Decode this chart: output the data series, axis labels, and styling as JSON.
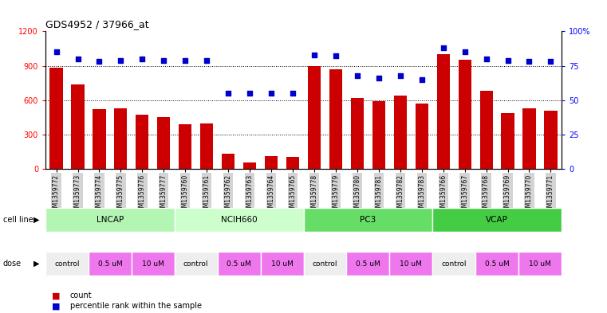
{
  "title": "GDS4952 / 37966_at",
  "samples": [
    "GSM1359772",
    "GSM1359773",
    "GSM1359774",
    "GSM1359775",
    "GSM1359776",
    "GSM1359777",
    "GSM1359760",
    "GSM1359761",
    "GSM1359762",
    "GSM1359763",
    "GSM1359764",
    "GSM1359765",
    "GSM1359778",
    "GSM1359779",
    "GSM1359780",
    "GSM1359781",
    "GSM1359782",
    "GSM1359783",
    "GSM1359766",
    "GSM1359767",
    "GSM1359768",
    "GSM1359769",
    "GSM1359770",
    "GSM1359771"
  ],
  "counts": [
    880,
    740,
    520,
    530,
    470,
    450,
    390,
    400,
    130,
    55,
    110,
    105,
    900,
    870,
    620,
    590,
    640,
    570,
    1000,
    950,
    680,
    490,
    530,
    510
  ],
  "percentiles": [
    85,
    80,
    78,
    79,
    80,
    79,
    79,
    79,
    55,
    55,
    55,
    55,
    83,
    82,
    68,
    66,
    68,
    65,
    88,
    85,
    80,
    79,
    78,
    78
  ],
  "cell_lines": [
    {
      "name": "LNCAP",
      "start": 0,
      "end": 6,
      "color": "#b3f5b3"
    },
    {
      "name": "NCIH660",
      "start": 6,
      "end": 12,
      "color": "#ccffcc"
    },
    {
      "name": "PC3",
      "start": 12,
      "end": 18,
      "color": "#66dd66"
    },
    {
      "name": "VCAP",
      "start": 18,
      "end": 24,
      "color": "#44cc44"
    }
  ],
  "dose_groups": [
    {
      "name": "control",
      "color": "#eeeeee"
    },
    {
      "name": "0.5 uM",
      "color": "#ee77ee"
    },
    {
      "name": "10 uM",
      "color": "#ee77ee"
    }
  ],
  "bar_color": "#cc0000",
  "dot_color": "#0000cc",
  "left_ylim": [
    0,
    1200
  ],
  "left_yticks": [
    0,
    300,
    600,
    900,
    1200
  ],
  "right_ylim": [
    0,
    100
  ],
  "right_yticks": [
    0,
    25,
    50,
    75,
    100
  ],
  "bg_color": "#ffffff",
  "tick_bg": "#d4d4d4"
}
